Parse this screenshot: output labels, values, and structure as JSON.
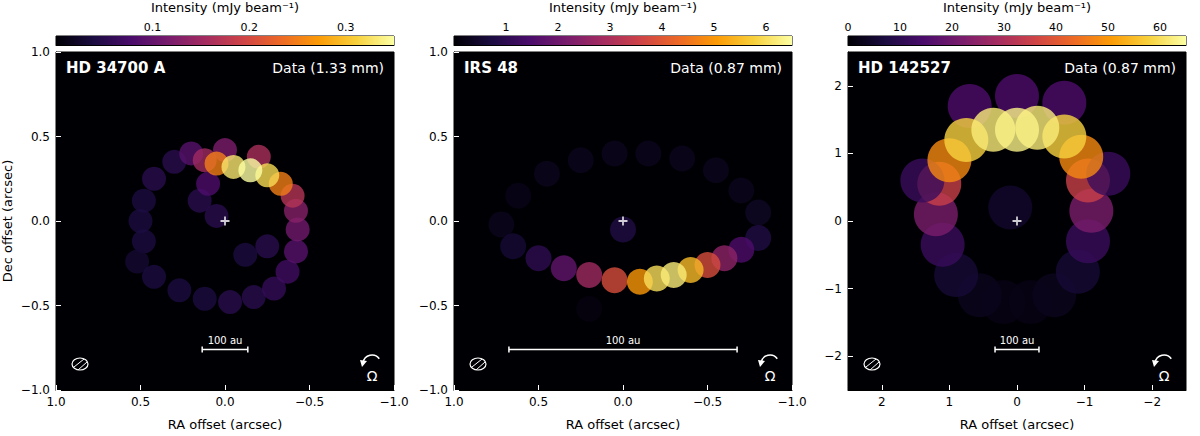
{
  "chart_data": [
    {
      "type": "image",
      "title": "HD 34700 A",
      "subtitle": "Data (1.33 mm)",
      "xlabel": "RA offset (arcsec)",
      "ylabel": "Dec offset (arcsec)",
      "xlim": [
        1,
        -1
      ],
      "ylim": [
        -1,
        1
      ],
      "xticks": [
        {
          "value": 1,
          "label": "1.0"
        },
        {
          "value": 0.5,
          "label": "0.5"
        },
        {
          "value": 0,
          "label": "0.0"
        },
        {
          "value": -0.5,
          "label": "−0.5"
        },
        {
          "value": -1,
          "label": "−1.0"
        }
      ],
      "yticks": [
        {
          "value": -1,
          "label": "−1.0"
        },
        {
          "value": -0.5,
          "label": "−0.5"
        },
        {
          "value": 0,
          "label": "0.0"
        },
        {
          "value": 0.5,
          "label": "0.5"
        },
        {
          "value": 1,
          "label": "1.0"
        }
      ],
      "colorbar": {
        "label": "Intensity (mJy beam⁻¹)",
        "range": [
          0,
          0.35
        ],
        "ticks": [
          0.1,
          0.2,
          0.3
        ]
      },
      "emission": [
        [
          0.3,
          0.35,
          0.05
        ],
        [
          0.42,
          0.25,
          0.05
        ],
        [
          0.48,
          0.12,
          0.04
        ],
        [
          0.5,
          0.0,
          0.04
        ],
        [
          0.48,
          -0.12,
          0.04
        ],
        [
          0.52,
          -0.24,
          0.03
        ],
        [
          0.42,
          -0.33,
          0.04
        ],
        [
          0.27,
          -0.41,
          0.04
        ],
        [
          0.12,
          -0.46,
          0.04
        ],
        [
          -0.03,
          -0.48,
          0.05
        ],
        [
          -0.17,
          -0.45,
          0.05
        ],
        [
          -0.29,
          -0.4,
          0.06
        ],
        [
          -0.37,
          -0.3,
          0.07
        ],
        [
          -0.25,
          -0.15,
          0.05
        ],
        [
          -0.12,
          -0.2,
          0.04
        ],
        [
          0.05,
          0.03,
          0.05
        ],
        [
          0.15,
          0.12,
          0.05
        ],
        [
          0.1,
          0.22,
          0.08
        ],
        [
          -0.42,
          -0.18,
          0.09
        ],
        [
          -0.43,
          -0.05,
          0.11
        ],
        [
          -0.42,
          0.06,
          0.13
        ],
        [
          -0.4,
          0.15,
          0.17
        ],
        [
          0.2,
          0.4,
          0.09
        ],
        [
          0.0,
          0.42,
          0.12
        ],
        [
          -0.2,
          0.38,
          0.16
        ],
        [
          0.12,
          0.36,
          0.15
        ],
        [
          -0.33,
          0.22,
          0.25
        ],
        [
          0.05,
          0.34,
          0.25
        ],
        [
          -0.25,
          0.27,
          0.32
        ],
        [
          -0.05,
          0.32,
          0.33
        ],
        [
          -0.15,
          0.3,
          0.35
        ]
      ],
      "star": [
        0,
        0
      ],
      "scale_bar": {
        "label": "100 au",
        "length": 0.27
      },
      "rotation_label": "Ω"
    },
    {
      "type": "image",
      "title": "IRS 48",
      "subtitle": "Data (0.87 mm)",
      "xlabel": "RA offset (arcsec)",
      "xlim": [
        1,
        -1
      ],
      "ylim": [
        -1,
        1
      ],
      "xticks": [
        {
          "value": 1,
          "label": "1.0"
        },
        {
          "value": 0.5,
          "label": "0.5"
        },
        {
          "value": 0,
          "label": "0.0"
        },
        {
          "value": -0.5,
          "label": "−0.5"
        },
        {
          "value": -1,
          "label": "−1.0"
        }
      ],
      "yticks": [
        {
          "value": -1,
          "label": "−1.0"
        },
        {
          "value": -0.5,
          "label": "−0.5"
        },
        {
          "value": 0,
          "label": "0.0"
        },
        {
          "value": 0.5,
          "label": "0.5"
        },
        {
          "value": 1,
          "label": "1.0"
        }
      ],
      "colorbar": {
        "label": "Intensity (mJy beam⁻¹)",
        "range": [
          0,
          6.5
        ],
        "ticks": [
          1,
          2,
          3,
          4,
          5,
          6
        ]
      },
      "emission": [
        [
          0.72,
          -0.02,
          0.3
        ],
        [
          0.62,
          0.15,
          0.25
        ],
        [
          0.45,
          0.28,
          0.3
        ],
        [
          0.25,
          0.36,
          0.3
        ],
        [
          0.05,
          0.4,
          0.3
        ],
        [
          -0.15,
          0.4,
          0.3
        ],
        [
          -0.35,
          0.37,
          0.3
        ],
        [
          -0.55,
          0.3,
          0.3
        ],
        [
          -0.7,
          0.18,
          0.3
        ],
        [
          -0.8,
          0.05,
          0.4
        ],
        [
          0.2,
          -0.52,
          0.15
        ],
        [
          0.0,
          -0.05,
          0.8
        ],
        [
          -0.8,
          -0.1,
          0.8
        ],
        [
          0.65,
          -0.15,
          0.6
        ],
        [
          0.5,
          -0.22,
          1.0
        ],
        [
          -0.7,
          -0.17,
          1.5
        ],
        [
          0.35,
          -0.28,
          1.8
        ],
        [
          -0.6,
          -0.22,
          2.5
        ],
        [
          0.2,
          -0.32,
          2.8
        ],
        [
          0.05,
          -0.35,
          3.8
        ],
        [
          -0.5,
          -0.26,
          3.8
        ],
        [
          -0.1,
          -0.36,
          5
        ],
        [
          -0.4,
          -0.29,
          5.5
        ],
        [
          -0.2,
          -0.34,
          6
        ],
        [
          -0.3,
          -0.32,
          6.2
        ]
      ],
      "star": [
        0,
        0
      ],
      "scale_bar": {
        "label": "100 au",
        "length": 1.35
      },
      "rotation_label": "Ω"
    },
    {
      "type": "image",
      "title": "HD 142527",
      "subtitle": "Data (0.87 mm)",
      "xlabel": "RA offset (arcsec)",
      "xlim": [
        2.5,
        -2.5
      ],
      "ylim": [
        -2.5,
        2.5
      ],
      "xticks": [
        2,
        1,
        0,
        {
          "value": -1,
          "label": "−1"
        },
        {
          "value": -2,
          "label": "−2"
        }
      ],
      "yticks": [
        {
          "value": -2,
          "label": "−2"
        },
        {
          "value": -1,
          "label": "−1"
        },
        0,
        1,
        2
      ],
      "colorbar": {
        "label": "Intensity (mJy beam⁻¹)",
        "range": [
          0,
          65
        ],
        "ticks": [
          0,
          10,
          20,
          30,
          40,
          50,
          60
        ]
      },
      "emission": [
        [
          0.2,
          -1.2,
          2
        ],
        [
          -0.2,
          -1.2,
          2
        ],
        [
          0.55,
          -1.1,
          3
        ],
        [
          -0.55,
          -1.1,
          3
        ],
        [
          0.9,
          -0.8,
          6
        ],
        [
          -0.9,
          -0.75,
          6
        ],
        [
          0.1,
          0.2,
          5
        ],
        [
          1.1,
          -0.35,
          12
        ],
        [
          -1.05,
          -0.3,
          12
        ],
        [
          1.2,
          0.1,
          22
        ],
        [
          -1.1,
          0.15,
          22
        ],
        [
          1.15,
          0.55,
          35
        ],
        [
          -1.05,
          0.6,
          35
        ],
        [
          1.4,
          0.6,
          12
        ],
        [
          -1.35,
          0.7,
          12
        ],
        [
          0.0,
          1.85,
          15
        ],
        [
          0.7,
          1.7,
          15
        ],
        [
          -0.7,
          1.75,
          15
        ],
        [
          1.0,
          0.9,
          48
        ],
        [
          -0.95,
          0.95,
          48
        ],
        [
          0.75,
          1.2,
          58
        ],
        [
          -0.7,
          1.25,
          58
        ],
        [
          0.35,
          1.35,
          62
        ],
        [
          -0.3,
          1.38,
          62
        ],
        [
          0.0,
          1.35,
          63
        ]
      ],
      "star": [
        0,
        0
      ],
      "scale_bar": {
        "label": "100 au",
        "length": 0.65
      },
      "rotation_label": "Ω"
    }
  ]
}
